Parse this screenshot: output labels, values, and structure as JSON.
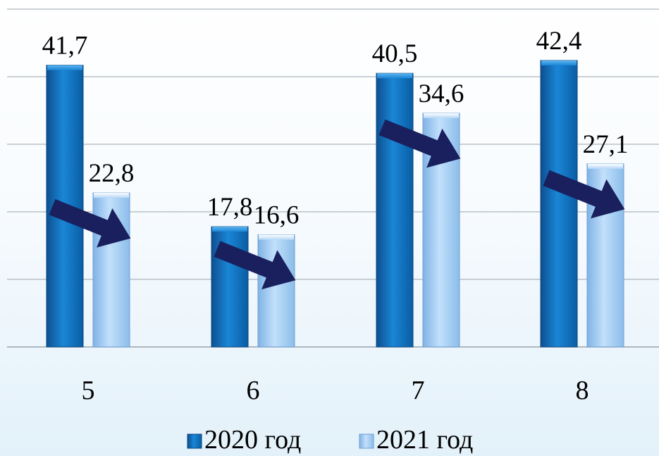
{
  "chart_data": {
    "type": "bar",
    "title": "",
    "xlabel": "",
    "ylabel": "",
    "categories": [
      "5",
      "6",
      "7",
      "8"
    ],
    "series": [
      {
        "name": "2020 год",
        "values": [
          41.7,
          17.8,
          40.5,
          42.4
        ],
        "labels": [
          "41,7",
          "17,8",
          "40,5",
          "42,4"
        ]
      },
      {
        "name": "2021 год",
        "values": [
          22.8,
          16.6,
          34.6,
          27.1
        ],
        "labels": [
          "22,8",
          "16,6",
          "34,6",
          "27,1"
        ]
      }
    ],
    "ylim": [
      0,
      50
    ],
    "grid": true,
    "legend_position": "bottom",
    "colors": {
      "series_2020": "#0a6bb8",
      "series_2021": "#9cc8f0",
      "arrow": "#1a1f5e",
      "grid": "#9aa3ab"
    },
    "annotations": {
      "trend_arrows": "down-right",
      "arrow_count": 4
    }
  }
}
